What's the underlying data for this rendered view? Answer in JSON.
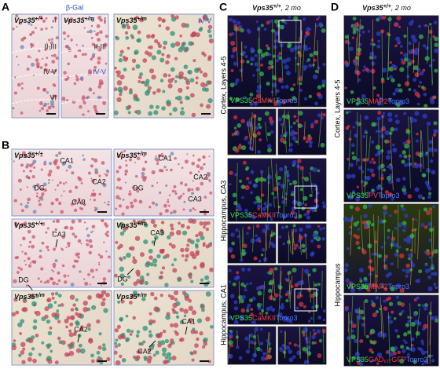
{
  "panel_a": {
    "letter": "A",
    "stain": "β-Gal",
    "images": [
      {
        "genotype": {
          "gene": "Vps35",
          "allele": "+/+"
        },
        "layers": [
          "I",
          "II-III",
          "IV-V",
          "VI"
        ]
      },
      {
        "genotype": {
          "gene": "Vps35",
          "allele": "+/m"
        },
        "layers": [
          "I",
          "II-III",
          "IV-V"
        ]
      },
      {
        "genotype": {
          "gene": "Vps35",
          "allele": "+/m"
        },
        "layers": [
          "IV-V"
        ]
      }
    ]
  },
  "panel_b": {
    "letter": "B",
    "images": [
      {
        "genotype": {
          "gene": "Vps35",
          "allele": "+/+"
        },
        "labels": [
          "CA1",
          "CA2",
          "DG",
          "CA3"
        ]
      },
      {
        "genotype": {
          "gene": "Vps35",
          "allele": "+/m"
        },
        "labels": [
          "CA1",
          "CA2",
          "CA3",
          "DG"
        ]
      },
      {
        "genotype": {
          "gene": "Vps35",
          "allele": "+/+"
        },
        "labels": [
          "CA3",
          "DG"
        ]
      },
      {
        "genotype": {
          "gene": "Vps35",
          "allele": "+/m"
        },
        "labels": [
          "CA3",
          "DG"
        ]
      },
      {
        "genotype": {
          "gene": "Vps35",
          "allele": "+/m"
        },
        "labels": [
          "CA2"
        ]
      },
      {
        "genotype": {
          "gene": "Vps35",
          "allele": "+/m"
        },
        "labels": [
          "CA1",
          "CA2"
        ]
      }
    ]
  },
  "panel_c": {
    "letter": "C",
    "title": {
      "gene": "Vps35",
      "allele": "+/+",
      "suffix": ", 2 mo"
    },
    "regions": [
      "Cortex, Layers 4-5",
      "Hippocampus, CA3",
      "Hippocampus, CA1"
    ],
    "channels": [
      [
        "VPS35",
        "CaMKII",
        "Topro3"
      ],
      [
        "VPS35",
        "CaMKII",
        "Topro3"
      ],
      [
        "VPS35",
        "CaMKII",
        "Topro3"
      ]
    ]
  },
  "panel_d": {
    "letter": "D",
    "title": {
      "gene": "Vps35",
      "allele": "+/+",
      "suffix": ", 2 mo"
    },
    "regions": [
      "Cortex, Layers 4-5",
      "Hippocampus"
    ],
    "channels": [
      [
        "VPS35",
        "MAP2",
        "Topro3"
      ],
      [
        "VPS35",
        "PV",
        "Topro3"
      ],
      [
        "VPS35",
        "MAP2",
        "Topro3"
      ],
      [
        "VPS35",
        "GAD₆₇-GFP",
        "Topro3"
      ]
    ]
  }
}
